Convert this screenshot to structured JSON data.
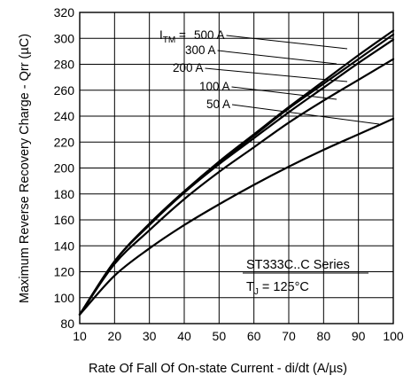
{
  "chart_data": {
    "type": "line",
    "xlabel": "Rate Of Fall Of On-state Current - di/dt (A/µs)",
    "ylabel": "Maximum Reverse Recovery Charge - Qrr (µC)",
    "xlim": [
      10,
      100
    ],
    "ylim": [
      80,
      320
    ],
    "x_ticks": [
      10,
      20,
      30,
      40,
      50,
      60,
      70,
      80,
      90,
      100
    ],
    "y_ticks": [
      80,
      100,
      120,
      140,
      160,
      180,
      200,
      220,
      240,
      260,
      280,
      300,
      320
    ],
    "grid": true,
    "legend_prefix": "I",
    "legend_prefix_sub": "TM",
    "legend_prefix_suffix": " = ",
    "annotation_series": "ST333C..C Series",
    "annotation_temp_prefix": "T",
    "annotation_temp_sub": "J",
    "annotation_temp_value": " = 125°C",
    "x": [
      10,
      20,
      30,
      40,
      50,
      60,
      70,
      80,
      90,
      100
    ],
    "series": [
      {
        "name": "500 A",
        "values": [
          87,
          128,
          157,
          182,
          205,
          226,
          247,
          267,
          287,
          306
        ]
      },
      {
        "name": "300 A",
        "values": [
          87,
          128,
          157,
          182,
          204,
          225,
          246,
          265,
          284,
          303
        ]
      },
      {
        "name": "200 A",
        "values": [
          87,
          128,
          156,
          181,
          203,
          223,
          243,
          262,
          281,
          299
        ]
      },
      {
        "name": "100 A",
        "values": [
          87,
          126,
          152,
          176,
          197,
          216,
          235,
          252,
          268,
          284
        ]
      },
      {
        "name": "50 A",
        "values": [
          87,
          117,
          138,
          156,
          172,
          187,
          201,
          214,
          226,
          238
        ]
      }
    ]
  }
}
